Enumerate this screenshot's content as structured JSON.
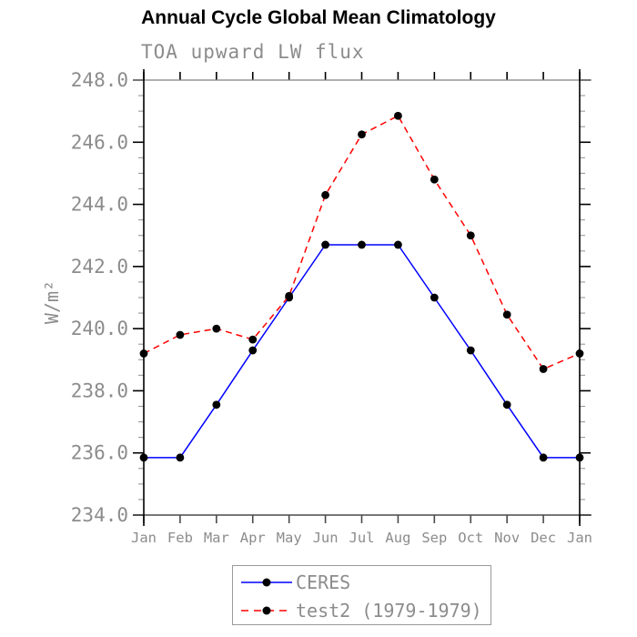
{
  "title": "Annual Cycle Global Mean Climatology",
  "subtitle": "TOA upward LW flux",
  "y_axis_title": "W/m²",
  "chart_data": {
    "type": "line",
    "title": "Annual Cycle Global Mean Climatology",
    "subtitle": "TOA upward LW flux",
    "xlabel": "",
    "ylabel": "W/m²",
    "categories": [
      "Jan",
      "Feb",
      "Mar",
      "Apr",
      "May",
      "Jun",
      "Jul",
      "Aug",
      "Sep",
      "Oct",
      "Nov",
      "Dec",
      "Jan"
    ],
    "series": [
      {
        "name": "CERES",
        "color": "#0000ff",
        "line_style": "solid",
        "marker": "filled-circle",
        "marker_color": "#000000",
        "values": [
          235.85,
          235.85,
          237.55,
          239.3,
          241.0,
          242.7,
          242.7,
          242.7,
          241.0,
          239.3,
          237.55,
          235.85,
          235.85
        ]
      },
      {
        "name": "test2 (1979-1979)",
        "color": "#ff0000",
        "line_style": "dashed",
        "marker": "filled-circle",
        "marker_color": "#000000",
        "values": [
          239.2,
          239.8,
          240.0,
          239.65,
          241.05,
          244.3,
          246.25,
          246.85,
          244.8,
          243.0,
          240.45,
          238.7,
          239.2
        ]
      }
    ],
    "ylim": [
      234.0,
      248.0
    ],
    "yticks": [
      234.0,
      236.0,
      238.0,
      240.0,
      242.0,
      244.0,
      246.0,
      248.0
    ],
    "ytick_labels": [
      "234.0",
      "236.0",
      "238.0",
      "240.0",
      "242.0",
      "244.0",
      "246.0",
      "248.0"
    ],
    "yminor_interval": 0.5,
    "grid": false,
    "legend_position": "bottom-center"
  },
  "colors": {
    "axis_text": "#8c8c8c",
    "axis_line": "#000000",
    "frame_top": "#808080",
    "frame_bottom": "#4a4a4a",
    "minor_tick": "#999999",
    "ceres_line": "#0000ff",
    "test2_line": "#ff0000",
    "marker": "#000000"
  }
}
